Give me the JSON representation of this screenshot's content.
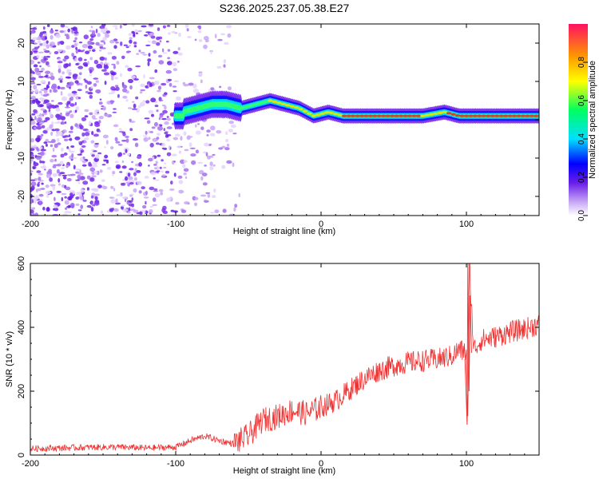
{
  "title": "S236.2025.237.05.38.E27",
  "chart_data": [
    {
      "type": "heatmap",
      "title": "",
      "xlabel": "Height of straight line (km)",
      "ylabel": "Frequency (Hz)",
      "xlim": [
        -200,
        150
      ],
      "ylim": [
        -25,
        25
      ],
      "xticks": [
        -200,
        -100,
        0,
        100
      ],
      "yticks": [
        -20,
        -10,
        0,
        10,
        20
      ],
      "colorbar": {
        "label": "Normalized spectral amplitude",
        "range": [
          0.0,
          1.0
        ],
        "ticks": [
          0.0,
          0.2,
          0.4,
          0.6,
          0.8
        ]
      },
      "ridge": {
        "description_points_km_hz": [
          [
            -95,
            2
          ],
          [
            -85,
            3
          ],
          [
            -75,
            4
          ],
          [
            -65,
            4
          ],
          [
            -55,
            3
          ],
          [
            -45,
            4
          ],
          [
            -35,
            5
          ],
          [
            -25,
            4
          ],
          [
            -15,
            3
          ],
          [
            -5,
            1
          ],
          [
            5,
            2
          ],
          [
            15,
            1
          ],
          [
            25,
            1
          ],
          [
            40,
            1
          ],
          [
            55,
            1
          ],
          [
            70,
            1
          ],
          [
            85,
            2
          ],
          [
            95,
            1
          ],
          [
            105,
            1
          ],
          [
            120,
            1
          ],
          [
            140,
            1
          ]
        ]
      },
      "noise_region_km": [
        -200,
        -55
      ]
    },
    {
      "type": "line",
      "title": "",
      "xlabel": "Height of straight line (km)",
      "ylabel": "SNR (10 * v/v)",
      "xlim": [
        -200,
        150
      ],
      "ylim": [
        0,
        600
      ],
      "xticks": [
        -200,
        -100,
        0,
        100
      ],
      "yticks": [
        0,
        200,
        400,
        600
      ],
      "series": [
        {
          "name": "SNR",
          "color": "#ee3333",
          "x": [
            -200,
            -180,
            -160,
            -140,
            -120,
            -100,
            -90,
            -80,
            -70,
            -60,
            -50,
            -40,
            -30,
            -20,
            -10,
            0,
            10,
            20,
            30,
            40,
            50,
            60,
            70,
            80,
            90,
            95,
            100,
            101,
            102,
            105,
            110,
            120,
            130,
            140,
            150
          ],
          "y": [
            20,
            22,
            24,
            25,
            22,
            25,
            45,
            60,
            45,
            35,
            60,
            110,
            120,
            140,
            130,
            150,
            170,
            205,
            240,
            265,
            280,
            290,
            295,
            300,
            310,
            330,
            320,
            95,
            600,
            330,
            360,
            370,
            385,
            395,
            410
          ]
        }
      ]
    }
  ]
}
